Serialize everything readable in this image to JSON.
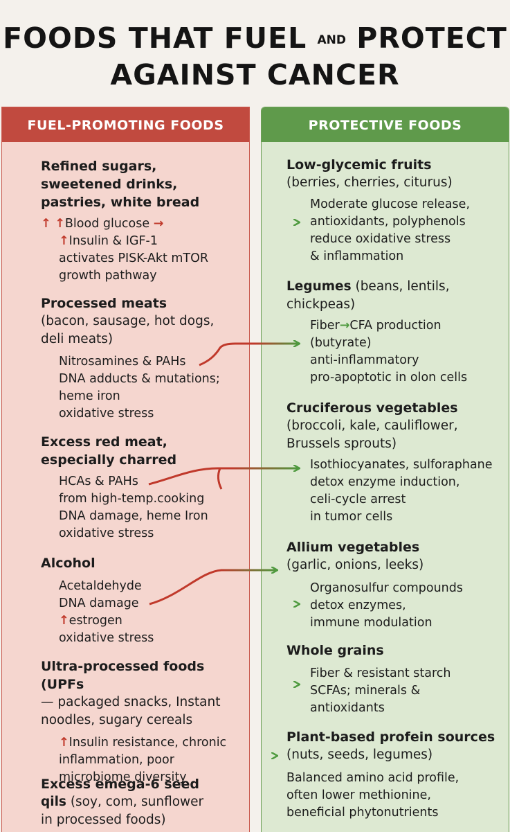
{
  "title": {
    "line1_a": "FOODS THAT FUEL",
    "line1_and": "AND",
    "line1_b": "PROTECT",
    "line2": "AGAINST CANCER"
  },
  "colors": {
    "fuel": "#c14a3f",
    "protect": "#5f9a4b",
    "arrow": "#c0392b",
    "arrow_tip": "#4e9a3f"
  },
  "fuel": {
    "header": "FUEL-PROMOTING FOODS",
    "items": [
      {
        "title": [
          "Refined sugars,",
          "sweetened drinks,",
          "pastries, white bread"
        ],
        "details": [
          "↑ ↑Blood glucose →",
          "↑Insulin & IGF-1",
          "activates PISK-Akt mTOR",
          "growth pathway"
        ]
      },
      {
        "title": [
          "Processed meats"
        ],
        "subtitle": [
          "(bacon, sausage, hot dogs,",
          "deli meats)"
        ],
        "details": [
          "Nitrosamines & PAHs",
          "DNA adducts & mutations;",
          "heme iron",
          "oxidative stress"
        ]
      },
      {
        "title": [
          "Excess red meat,",
          "especially charred"
        ],
        "details": [
          "HCAs & PAHs",
          "from high-temp.cooking",
          "DNA damage, heme Iron",
          "oxidative stress"
        ]
      },
      {
        "title": [
          "Alcohol"
        ],
        "details": [
          "Acetaldehyde",
          "DNA damage",
          "↑estrogen",
          "oxidative stress"
        ]
      },
      {
        "title": [
          "Ultra-processed foods (UPFs"
        ],
        "subtitle": [
          "— packaged snacks, Instant",
          "noodles, sugary cereals"
        ],
        "details": [
          "↑Insulin resistance, chronic",
          "inflammation, poor",
          "microbiome diversity"
        ]
      },
      {
        "title": [
          "Excess emega-6 seed"
        ],
        "subtitle_mixed": {
          "bold": "qils",
          "rest": " (soy, com, sunflower"
        },
        "subtitle": [
          "in processed foods)"
        ]
      }
    ]
  },
  "protect": {
    "header": "PROTECTIVE FOODS",
    "items": [
      {
        "title_bold": "Low-glycemic fruits",
        "title_rest": "",
        "subtitle": [
          "(berries, cherries, citurus)"
        ],
        "details": [
          "Moderate glucose release,",
          "antioxidants, polyphenols",
          "reduce oxidative stress",
          "& inflammation"
        ]
      },
      {
        "title_bold": "Legumes",
        "title_rest": " (beans, lentils,",
        "subtitle": [
          "chickpeas)"
        ],
        "details": [
          "Fiber→CFA production",
          "(butyrate)",
          "anti-inflammatory",
          "pro-apoptotic in olon cells"
        ]
      },
      {
        "title_bold": "Cruciferous vegetables",
        "title_rest": "",
        "subtitle": [
          "(broccoli, kale, cauliflower,",
          "Brussels sprouts)"
        ],
        "details": [
          "Isothiocyanates, sulforaphane",
          "detox enzyme induction,",
          "celi-cycle arrest",
          "in tumor cells"
        ]
      },
      {
        "title_bold": "Allium vegetables",
        "title_rest": "",
        "subtitle": [
          "(garlic, onions, leeks)"
        ],
        "details": [
          "Organosulfur compounds",
          "detox enzymes,",
          "immune modulation"
        ]
      },
      {
        "title_bold": "Whole grains",
        "title_rest": "",
        "subtitle": [],
        "details": [
          "Fiber & resistant starch",
          "SCFAs; minerals &",
          "antioxidants"
        ]
      },
      {
        "title_bold": "Plant-based profein sources",
        "title_rest": "",
        "subtitle": [
          "(nuts, seeds, legumes)"
        ],
        "details_flat": [
          "Balanced amino acid profile,",
          "often lower methionine,",
          "beneficial phytonutrients"
        ]
      }
    ]
  }
}
